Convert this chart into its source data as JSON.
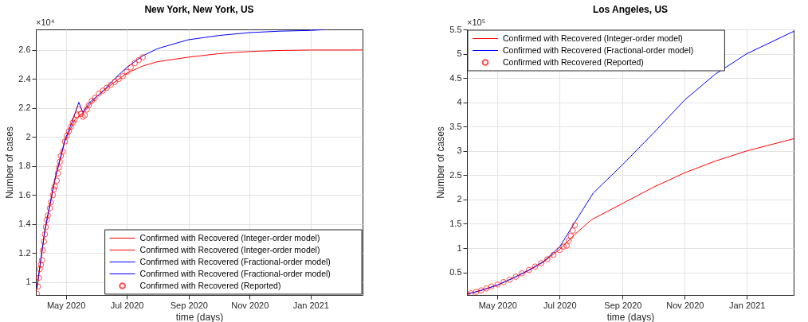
{
  "chart_data": [
    {
      "type": "line",
      "title": "New York, New York, US",
      "xlabel": "time (days)",
      "ylabel": "Number of cases",
      "annotations": [
        "×10⁴"
      ],
      "xlim": [
        "2020-04-01",
        "2021-02-22"
      ],
      "ylim": [
        0.912,
        2.742
      ],
      "xticks": [
        {
          "value": "2020-05-01",
          "label": "May 2020"
        },
        {
          "value": "2020-07-01",
          "label": "Jul 2020"
        },
        {
          "value": "2020-09-01",
          "label": "Sep 2020"
        },
        {
          "value": "2020-11-01",
          "label": "Nov 2020"
        },
        {
          "value": "2021-01-01",
          "label": "Jan 2021"
        }
      ],
      "yticks": [
        1,
        1.2,
        1.4,
        1.6,
        1.8,
        2,
        2.2,
        2.4,
        2.6
      ],
      "grid": true,
      "legend": "bottom right",
      "series": [
        {
          "name": "Confirmed with Recovered (Integer-order model)",
          "color": "#ff0000",
          "x": [
            "2020-04-02",
            "2020-04-10",
            "2020-04-20",
            "2020-04-30",
            "2020-05-10",
            "2020-05-20",
            "2020-06-01",
            "2020-06-15",
            "2020-07-01",
            "2020-07-17"
          ],
          "values": [
            0.95,
            1.35,
            1.7,
            1.97,
            2.12,
            2.18,
            2.28,
            2.36,
            2.44,
            2.49
          ]
        },
        {
          "name": "Confirmed with Recovered (Integer-order model)",
          "color": "#ff0000",
          "x": [
            "2020-07-17",
            "2020-08-01",
            "2020-08-31",
            "2020-10-01",
            "2020-11-01",
            "2020-12-01",
            "2021-01-01",
            "2021-02-22"
          ],
          "values": [
            2.49,
            2.52,
            2.55,
            2.575,
            2.59,
            2.597,
            2.6,
            2.6
          ]
        },
        {
          "name": "Confirmed with Recovered (Fractional-order model)",
          "color": "#0000ff",
          "x": [
            "2020-04-02",
            "2020-04-10",
            "2020-04-20",
            "2020-04-30",
            "2020-05-07",
            "2020-05-14",
            "2020-05-18",
            "2020-05-25",
            "2020-06-01",
            "2020-06-09",
            "2020-06-20",
            "2020-07-01",
            "2020-07-17"
          ],
          "values": [
            0.96,
            1.36,
            1.71,
            1.98,
            2.1,
            2.24,
            2.17,
            2.24,
            2.28,
            2.33,
            2.41,
            2.48,
            2.56
          ]
        },
        {
          "name": "Confirmed with Recovered (Fractional-order model)",
          "color": "#0000ff",
          "x": [
            "2020-07-17",
            "2020-08-01",
            "2020-08-31",
            "2020-10-01",
            "2020-11-01",
            "2020-12-01",
            "2021-01-01",
            "2021-01-14"
          ],
          "values": [
            2.56,
            2.61,
            2.67,
            2.7,
            2.72,
            2.73,
            2.735,
            2.74
          ]
        },
        {
          "name": "Confirmed with Recovered (Reported)",
          "type": "scatter",
          "marker": "circle",
          "color": "#ff0000",
          "x": [
            "2020-04-02",
            "2020-04-03",
            "2020-04-04",
            "2020-04-05",
            "2020-04-06",
            "2020-04-07",
            "2020-04-08",
            "2020-04-09",
            "2020-04-10",
            "2020-04-11",
            "2020-04-12",
            "2020-04-13",
            "2020-04-15",
            "2020-04-16",
            "2020-04-18",
            "2020-04-19",
            "2020-04-20",
            "2020-04-22",
            "2020-04-23",
            "2020-04-24",
            "2020-04-25",
            "2020-04-26",
            "2020-04-28",
            "2020-04-30",
            "2020-05-02",
            "2020-05-04",
            "2020-05-06",
            "2020-05-08",
            "2020-05-10",
            "2020-05-12",
            "2020-05-14",
            "2020-05-16",
            "2020-05-18",
            "2020-05-20",
            "2020-05-22",
            "2020-05-24",
            "2020-05-27",
            "2020-05-30",
            "2020-06-03",
            "2020-06-07",
            "2020-06-11",
            "2020-06-15",
            "2020-06-19",
            "2020-06-23",
            "2020-06-27",
            "2020-07-01",
            "2020-07-05",
            "2020-07-09",
            "2020-07-13",
            "2020-07-17"
          ],
          "values": [
            0.92,
            0.97,
            1.03,
            1.09,
            1.12,
            1.15,
            1.22,
            1.28,
            1.33,
            1.38,
            1.43,
            1.46,
            1.51,
            1.55,
            1.6,
            1.64,
            1.66,
            1.7,
            1.75,
            1.79,
            1.83,
            1.87,
            1.9,
            1.97,
            2.01,
            2.04,
            2.07,
            2.1,
            2.12,
            2.15,
            2.19,
            2.16,
            2.14,
            2.15,
            2.19,
            2.22,
            2.25,
            2.27,
            2.3,
            2.32,
            2.34,
            2.36,
            2.38,
            2.4,
            2.42,
            2.45,
            2.48,
            2.51,
            2.53,
            2.55
          ]
        }
      ]
    },
    {
      "type": "line",
      "title": "Los Angeles, US",
      "xlabel": "time (days)",
      "ylabel": "Number of cases",
      "annotations": [
        "×10⁵"
      ],
      "xlim": [
        "2020-04-01",
        "2021-02-16"
      ],
      "ylim": [
        0.035,
        5.5
      ],
      "xticks": [
        {
          "value": "2020-05-01",
          "label": "May 2020"
        },
        {
          "value": "2020-07-01",
          "label": "Jul 2020"
        },
        {
          "value": "2020-09-01",
          "label": "Sep 2020"
        },
        {
          "value": "2020-11-01",
          "label": "Nov 2020"
        },
        {
          "value": "2021-01-01",
          "label": "Jan 2021"
        }
      ],
      "yticks": [
        0.5,
        1,
        1.5,
        2,
        2.5,
        3,
        3.5,
        4,
        4.5,
        5,
        5.5
      ],
      "grid": true,
      "legend": "top left",
      "series": [
        {
          "name": "Confirmed with Recovered (Integer-order model)",
          "color": "#ff0000",
          "x": [
            "2020-04-01",
            "2020-04-15",
            "2020-05-01",
            "2020-05-15",
            "2020-06-01",
            "2020-06-15",
            "2020-07-01",
            "2020-07-16",
            "2020-08-01",
            "2020-09-01",
            "2020-10-01",
            "2020-11-01",
            "2020-12-01",
            "2021-01-01",
            "2021-02-16"
          ],
          "values": [
            0.05,
            0.13,
            0.24,
            0.37,
            0.54,
            0.71,
            0.97,
            1.28,
            1.58,
            1.92,
            2.25,
            2.55,
            2.79,
            3.0,
            3.25
          ]
        },
        {
          "name": "Confirmed with Recovered (Fractional-order model)",
          "color": "#0000ff",
          "x": [
            "2020-04-01",
            "2020-04-15",
            "2020-05-01",
            "2020-05-15",
            "2020-06-01",
            "2020-06-15",
            "2020-07-01",
            "2020-07-16",
            "2020-08-03",
            "2020-09-01",
            "2020-10-01",
            "2020-11-01",
            "2020-12-01",
            "2021-01-01",
            "2021-02-16"
          ],
          "values": [
            0.05,
            0.13,
            0.24,
            0.37,
            0.55,
            0.72,
            1.02,
            1.53,
            2.13,
            2.72,
            3.36,
            4.05,
            4.58,
            5.0,
            5.46
          ]
        },
        {
          "name": "Confirmed with Recovered (Reported)",
          "type": "scatter",
          "marker": "circle",
          "color": "#ff0000",
          "x": [
            "2020-04-01",
            "2020-04-05",
            "2020-04-10",
            "2020-04-15",
            "2020-04-20",
            "2020-04-25",
            "2020-05-01",
            "2020-05-07",
            "2020-05-13",
            "2020-05-19",
            "2020-05-25",
            "2020-06-01",
            "2020-06-07",
            "2020-06-13",
            "2020-06-19",
            "2020-06-25",
            "2020-07-01",
            "2020-07-05",
            "2020-07-08",
            "2020-07-10",
            "2020-07-12",
            "2020-07-14",
            "2020-07-16"
          ],
          "values": [
            0.05,
            0.07,
            0.1,
            0.13,
            0.17,
            0.21,
            0.25,
            0.3,
            0.35,
            0.41,
            0.48,
            0.55,
            0.62,
            0.69,
            0.77,
            0.86,
            0.96,
            1.03,
            1.05,
            1.15,
            1.25,
            1.36,
            1.47
          ]
        }
      ]
    }
  ]
}
